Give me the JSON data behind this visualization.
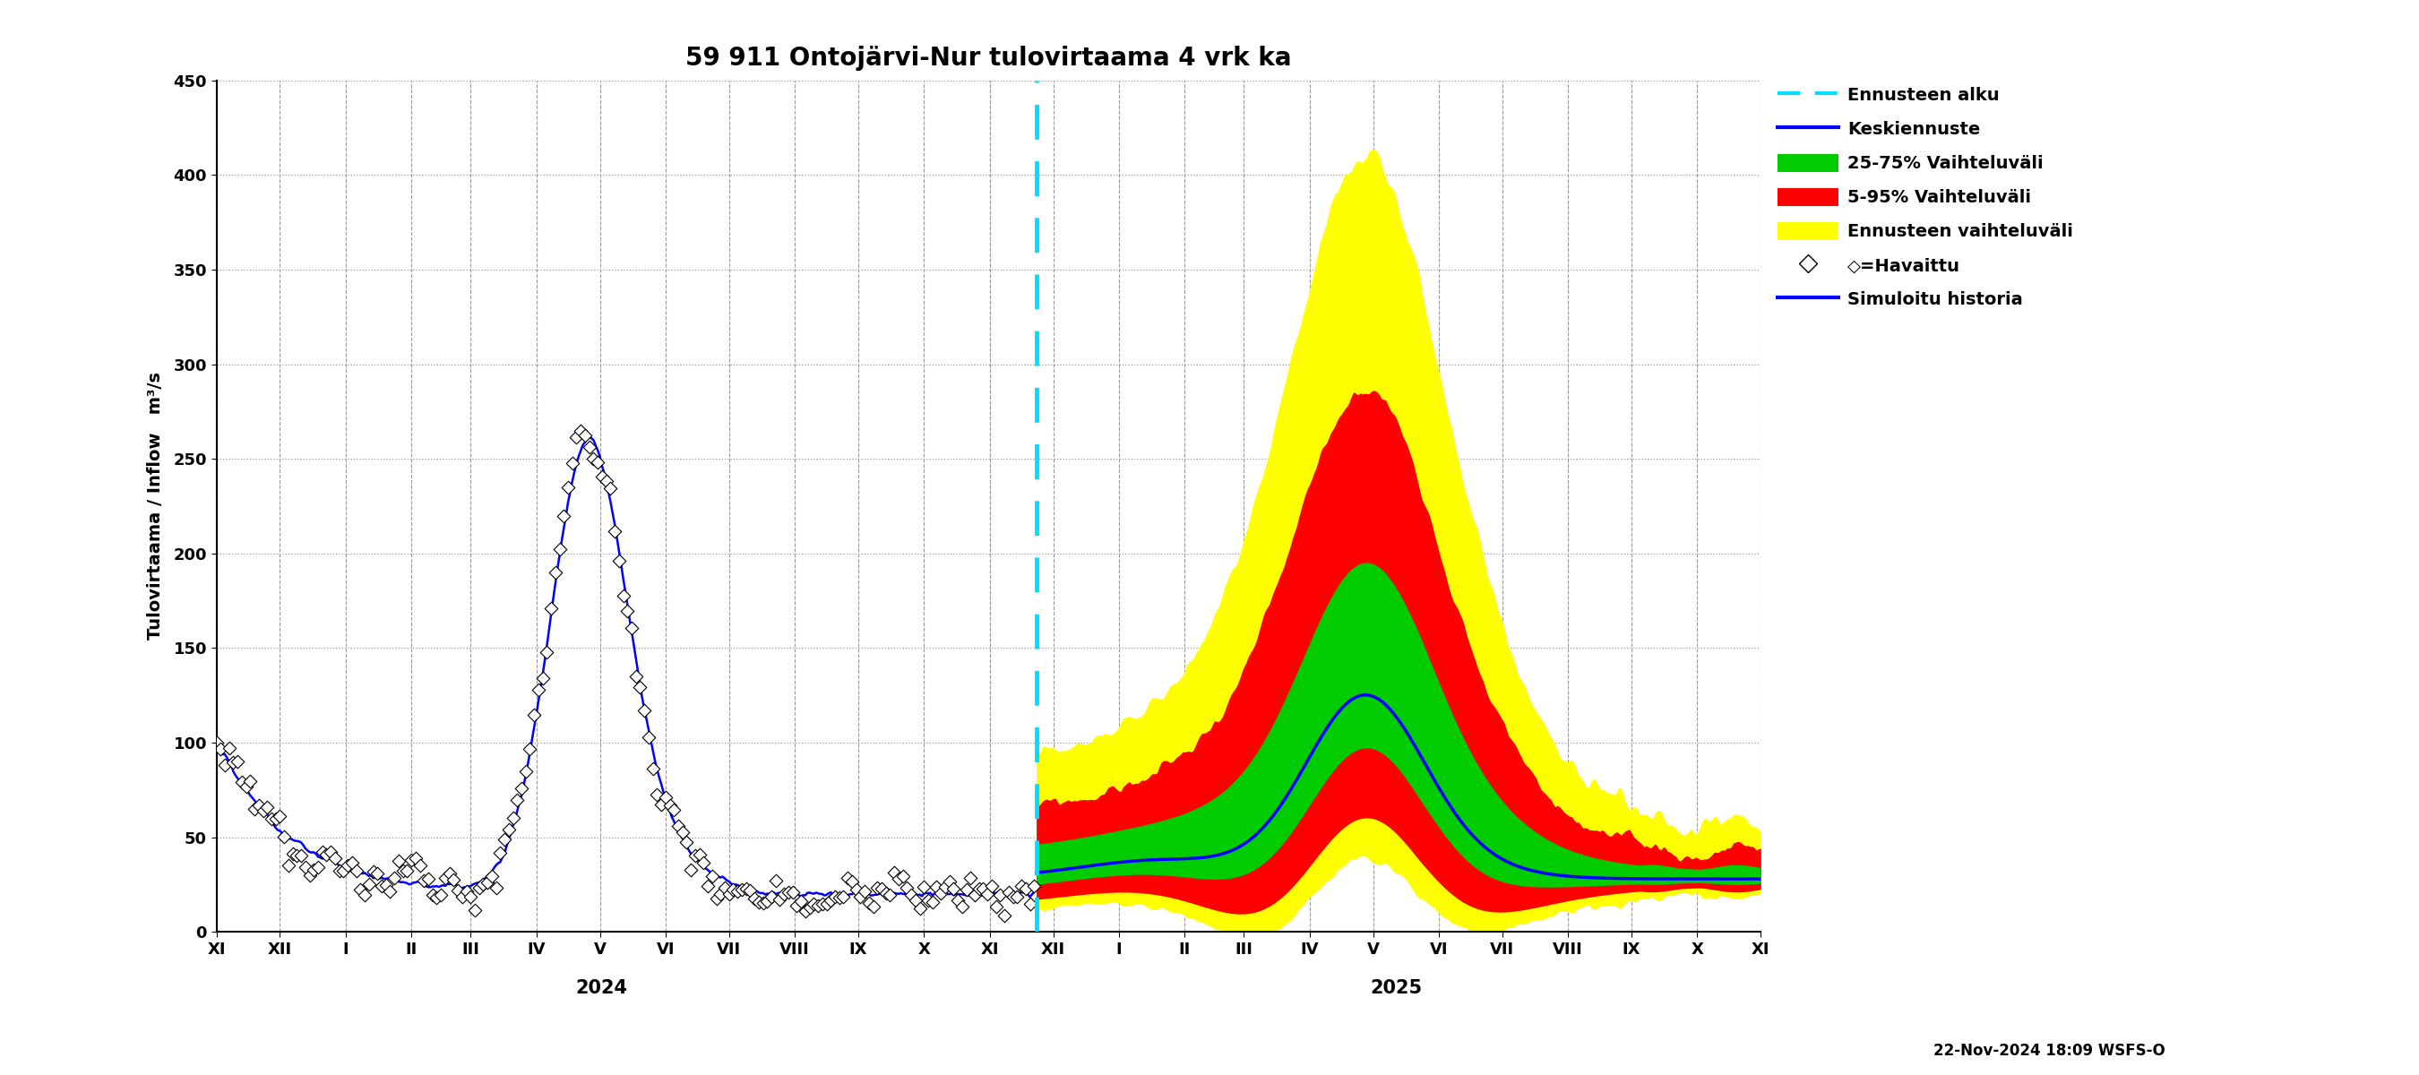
{
  "title": "59 911 Ontojärvi-Nur tulovirtaama 4 vrk ka",
  "ylabel": "Tulovirtaama / Inflow   m³/s",
  "ylim": [
    0,
    450
  ],
  "yticks": [
    0,
    50,
    100,
    150,
    200,
    250,
    300,
    350,
    400,
    450
  ],
  "background_color": "#ffffff",
  "plot_bg_color": "#ffffff",
  "grid_color": "#999999",
  "title_fontsize": 20,
  "label_fontsize": 14,
  "tick_fontsize": 13,
  "forecast_line_color": "#00ddff",
  "keskiennuste_color": "#0000ff",
  "vaihteluvali_25_75_color": "#00cc00",
  "vaihteluvali_5_95_color": "#ff0000",
  "ennusteen_vaihteluvali_color": "#ffff00",
  "historia_color": "#0000ff",
  "havaittu_color": "#000000",
  "timestamp_text": "22-Nov-2024 18:09 WSFS-O",
  "legend_labels": [
    "Ennusteen alku",
    "Keskiennuste",
    "25-75% Vaihteluväli",
    "5-95% Vaihteluväli",
    "Ennusteen vaihteluväli",
    "◇=Havaittu",
    "Simuloitu historia"
  ],
  "year_2024_label": "2024",
  "year_2025_label": "2025"
}
